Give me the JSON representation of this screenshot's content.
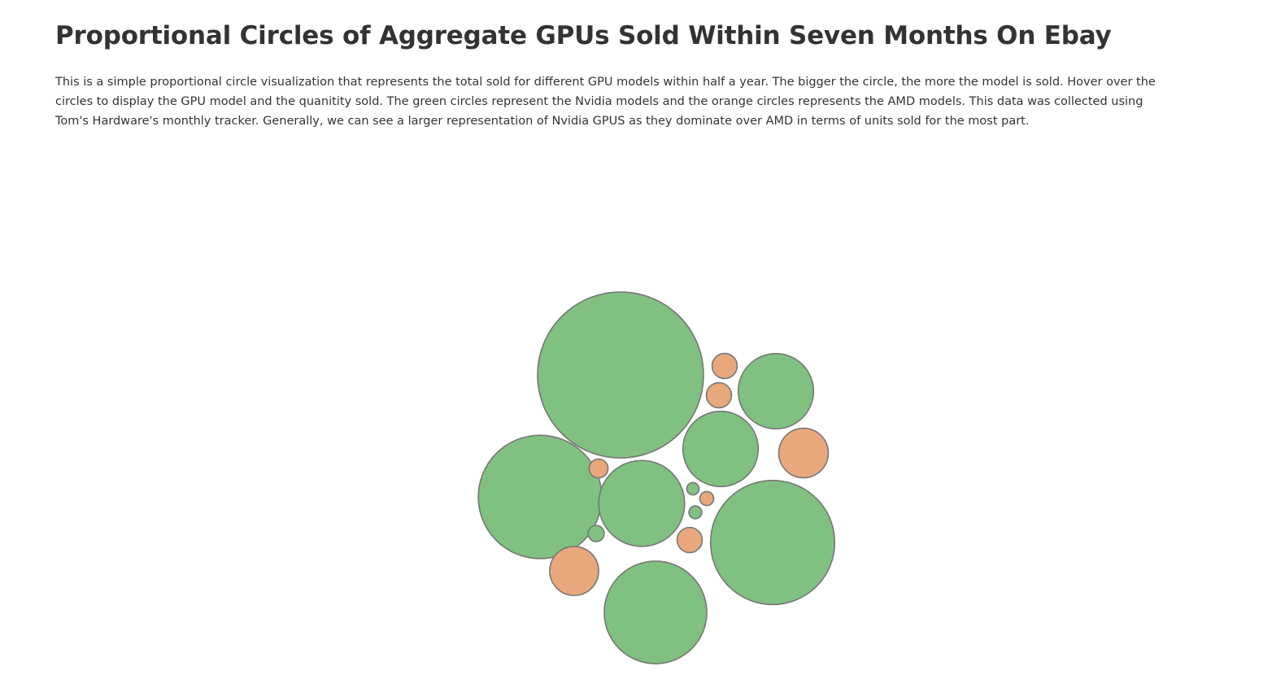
{
  "page": {
    "title": "Proportional Circles of Aggregate GPUs Sold Within Seven Months On Ebay",
    "description": "This is a simple proportional circle visualization that represents the total sold for different GPU models within half a year. The bigger the circle, the more the model is sold. Hover over the circles to display the GPU model and the quanitity sold. The green circles represent the Nvidia models and the orange circles represents the AMD models. This data was collected using Tom's Hardware's monthly tracker. Generally, we can see a larger representation of Nvidia GPUS as they dominate over AMD in terms of units sold for the most part."
  },
  "colors": {
    "nvidia": "#80c080",
    "amd": "#e8a87c"
  },
  "chart_data": {
    "type": "bubble",
    "value_encoding": "circle area",
    "grid": false,
    "legend": "none",
    "circles": [
      {
        "brand": "Nvidia",
        "value": 10000
      },
      {
        "brand": "Nvidia",
        "value": 5600
      },
      {
        "brand": "Nvidia",
        "value": 5530
      },
      {
        "brand": "Nvidia",
        "value": 3820
      },
      {
        "brand": "Nvidia",
        "value": 2680
      },
      {
        "brand": "Nvidia",
        "value": 2060
      },
      {
        "brand": "Nvidia",
        "value": 2060
      },
      {
        "brand": "AMD",
        "value": 890
      },
      {
        "brand": "AMD",
        "value": 870
      },
      {
        "brand": "AMD",
        "value": 230
      },
      {
        "brand": "AMD",
        "value": 230
      },
      {
        "brand": "AMD",
        "value": 230
      },
      {
        "brand": "AMD",
        "value": 130
      },
      {
        "brand": "Nvidia",
        "value": 95
      },
      {
        "brand": "AMD",
        "value": 70
      },
      {
        "brand": "Nvidia",
        "value": 60
      },
      {
        "brand": "Nvidia",
        "value": 55
      }
    ]
  }
}
